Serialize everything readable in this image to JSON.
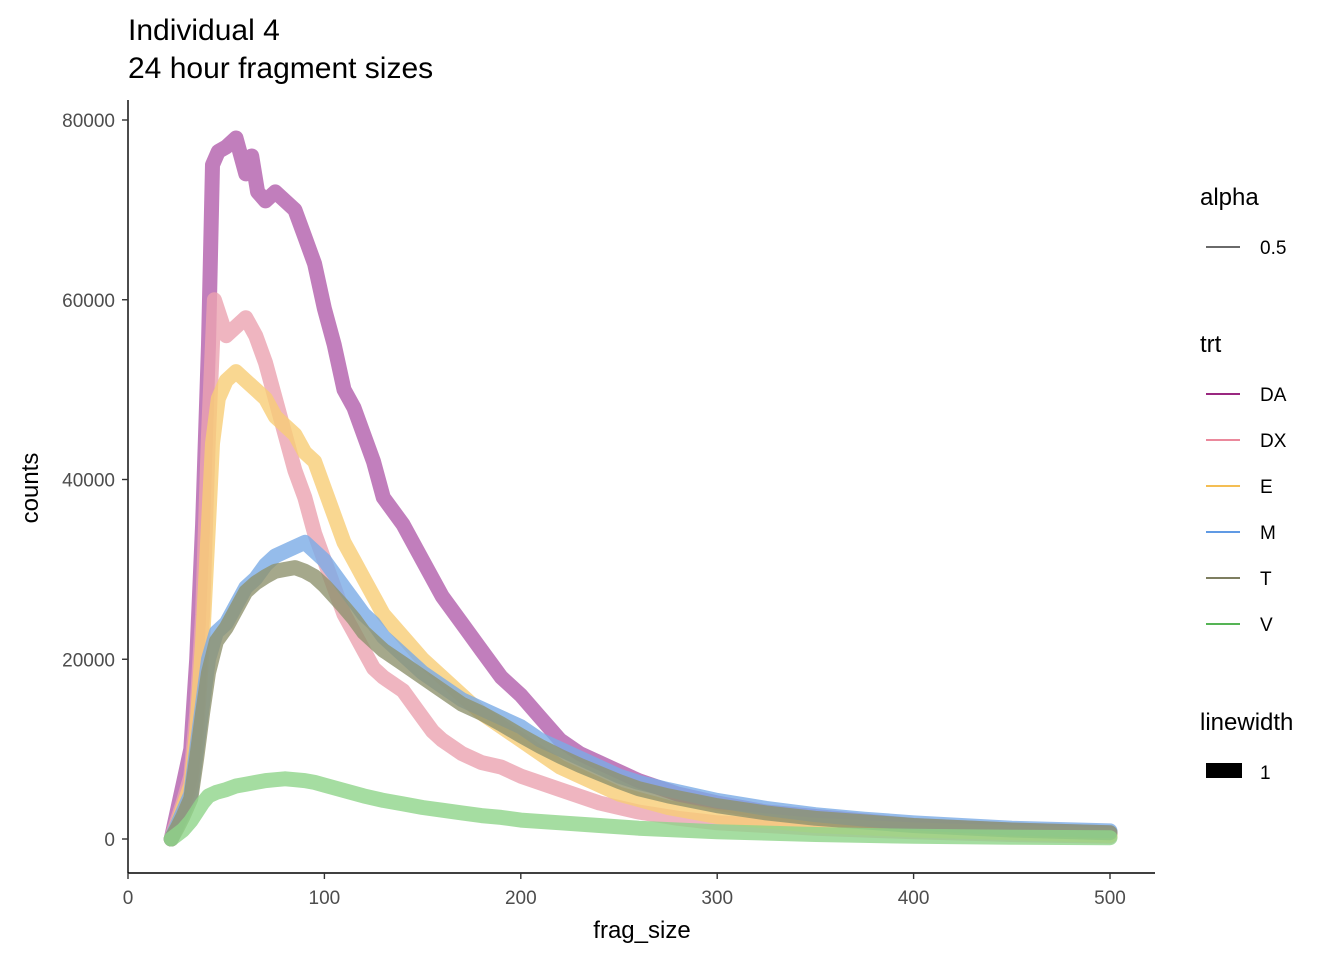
{
  "chart_data": {
    "type": "line",
    "title": "Individual 4",
    "subtitle": "24 hour fragment sizes",
    "xlabel": "frag_size",
    "ylabel": "counts",
    "xlim": [
      0,
      525
    ],
    "ylim": [
      -4000,
      82000
    ],
    "x_ticks": [
      0,
      100,
      200,
      300,
      400,
      500
    ],
    "y_ticks": [
      0,
      20000,
      40000,
      60000,
      80000
    ],
    "grid": false,
    "legend_position": "right",
    "legends": [
      {
        "title": "alpha",
        "entries": [
          {
            "label": "0.5",
            "color": "#555555"
          }
        ]
      },
      {
        "title": "trt",
        "entries": [
          {
            "label": "DA",
            "color": "#8B0A6E"
          },
          {
            "label": "DX",
            "color": "#E8788E"
          },
          {
            "label": "E",
            "color": "#F2B53B"
          },
          {
            "label": "M",
            "color": "#4A8BE0"
          },
          {
            "label": "T",
            "color": "#6B6B4A"
          },
          {
            "label": "V",
            "color": "#3DAA3D"
          }
        ]
      },
      {
        "title": "linewidth",
        "entries": [
          {
            "label": "1",
            "color": "#000000"
          }
        ]
      }
    ],
    "series": [
      {
        "name": "DA",
        "color": "#B15EAB",
        "points": [
          [
            22,
            0
          ],
          [
            25,
            3000
          ],
          [
            28,
            6000
          ],
          [
            32,
            10000
          ],
          [
            35,
            20000
          ],
          [
            38,
            35000
          ],
          [
            41,
            55000
          ],
          [
            43,
            75000
          ],
          [
            46,
            76500
          ],
          [
            50,
            77000
          ],
          [
            55,
            78000
          ],
          [
            60,
            74000
          ],
          [
            63,
            76000
          ],
          [
            66,
            72000
          ],
          [
            70,
            71000
          ],
          [
            75,
            72000
          ],
          [
            80,
            71000
          ],
          [
            85,
            70000
          ],
          [
            90,
            67000
          ],
          [
            95,
            64000
          ],
          [
            100,
            59000
          ],
          [
            105,
            55000
          ],
          [
            110,
            50000
          ],
          [
            115,
            48000
          ],
          [
            120,
            45000
          ],
          [
            125,
            42000
          ],
          [
            130,
            38000
          ],
          [
            140,
            35000
          ],
          [
            150,
            31000
          ],
          [
            160,
            27000
          ],
          [
            170,
            24000
          ],
          [
            180,
            21000
          ],
          [
            190,
            18000
          ],
          [
            200,
            16000
          ],
          [
            210,
            13500
          ],
          [
            220,
            11000
          ],
          [
            230,
            9500
          ],
          [
            240,
            8500
          ],
          [
            250,
            7500
          ],
          [
            260,
            6500
          ],
          [
            280,
            5000
          ],
          [
            300,
            4000
          ],
          [
            325,
            3000
          ],
          [
            350,
            2500
          ],
          [
            375,
            2000
          ],
          [
            400,
            1500
          ],
          [
            450,
            1000
          ],
          [
            500,
            700
          ]
        ]
      },
      {
        "name": "DX",
        "color": "#EBA2B0",
        "points": [
          [
            22,
            0
          ],
          [
            25,
            2000
          ],
          [
            28,
            4000
          ],
          [
            32,
            7000
          ],
          [
            35,
            14000
          ],
          [
            38,
            25000
          ],
          [
            41,
            45000
          ],
          [
            44,
            60000
          ],
          [
            47,
            58000
          ],
          [
            50,
            56000
          ],
          [
            55,
            57000
          ],
          [
            60,
            58000
          ],
          [
            65,
            56000
          ],
          [
            70,
            53000
          ],
          [
            75,
            49000
          ],
          [
            80,
            45000
          ],
          [
            85,
            41000
          ],
          [
            90,
            38000
          ],
          [
            95,
            34000
          ],
          [
            100,
            31000
          ],
          [
            105,
            28000
          ],
          [
            110,
            25000
          ],
          [
            115,
            23000
          ],
          [
            120,
            21000
          ],
          [
            125,
            19000
          ],
          [
            130,
            18000
          ],
          [
            140,
            16500
          ],
          [
            150,
            13500
          ],
          [
            155,
            12000
          ],
          [
            160,
            11000
          ],
          [
            170,
            9500
          ],
          [
            180,
            8500
          ],
          [
            190,
            8000
          ],
          [
            200,
            7000
          ],
          [
            220,
            5500
          ],
          [
            240,
            4000
          ],
          [
            260,
            3000
          ],
          [
            280,
            2300
          ],
          [
            300,
            1800
          ],
          [
            350,
            1200
          ],
          [
            400,
            800
          ],
          [
            450,
            500
          ],
          [
            500,
            300
          ]
        ]
      },
      {
        "name": "E",
        "color": "#F7CD76",
        "points": [
          [
            22,
            0
          ],
          [
            25,
            1500
          ],
          [
            28,
            3500
          ],
          [
            32,
            6000
          ],
          [
            35,
            12000
          ],
          [
            38,
            22000
          ],
          [
            41,
            35000
          ],
          [
            43,
            44000
          ],
          [
            46,
            49000
          ],
          [
            50,
            51000
          ],
          [
            55,
            52000
          ],
          [
            60,
            51000
          ],
          [
            65,
            50000
          ],
          [
            70,
            49000
          ],
          [
            75,
            47000
          ],
          [
            80,
            46000
          ],
          [
            85,
            45000
          ],
          [
            90,
            43000
          ],
          [
            95,
            42000
          ],
          [
            100,
            39000
          ],
          [
            105,
            36000
          ],
          [
            110,
            33000
          ],
          [
            115,
            31000
          ],
          [
            120,
            29000
          ],
          [
            125,
            27000
          ],
          [
            130,
            25000
          ],
          [
            140,
            22500
          ],
          [
            150,
            20000
          ],
          [
            160,
            18000
          ],
          [
            170,
            16000
          ],
          [
            180,
            14000
          ],
          [
            190,
            12500
          ],
          [
            200,
            11000
          ],
          [
            210,
            9500
          ],
          [
            220,
            8000
          ],
          [
            230,
            7000
          ],
          [
            250,
            5000
          ],
          [
            275,
            3500
          ],
          [
            300,
            2500
          ],
          [
            350,
            1500
          ],
          [
            400,
            1000
          ],
          [
            450,
            700
          ],
          [
            500,
            400
          ]
        ]
      },
      {
        "name": "M",
        "color": "#7AABE6",
        "points": [
          [
            22,
            0
          ],
          [
            25,
            1500
          ],
          [
            28,
            3000
          ],
          [
            32,
            5000
          ],
          [
            35,
            10000
          ],
          [
            38,
            15000
          ],
          [
            41,
            20000
          ],
          [
            45,
            23000
          ],
          [
            50,
            24000
          ],
          [
            55,
            26000
          ],
          [
            60,
            28000
          ],
          [
            65,
            29000
          ],
          [
            70,
            30500
          ],
          [
            75,
            31500
          ],
          [
            80,
            32000
          ],
          [
            85,
            32500
          ],
          [
            90,
            33000
          ],
          [
            95,
            32000
          ],
          [
            100,
            31000
          ],
          [
            105,
            29500
          ],
          [
            110,
            28000
          ],
          [
            115,
            26500
          ],
          [
            120,
            25000
          ],
          [
            125,
            24000
          ],
          [
            130,
            22500
          ],
          [
            140,
            20500
          ],
          [
            150,
            18500
          ],
          [
            160,
            17000
          ],
          [
            170,
            15500
          ],
          [
            180,
            14500
          ],
          [
            190,
            13500
          ],
          [
            200,
            12500
          ],
          [
            210,
            11000
          ],
          [
            220,
            10000
          ],
          [
            230,
            9000
          ],
          [
            240,
            8000
          ],
          [
            250,
            7000
          ],
          [
            260,
            6300
          ],
          [
            275,
            5500
          ],
          [
            300,
            4300
          ],
          [
            325,
            3400
          ],
          [
            350,
            2700
          ],
          [
            375,
            2200
          ],
          [
            400,
            1800
          ],
          [
            450,
            1200
          ],
          [
            500,
            900
          ]
        ]
      },
      {
        "name": "T",
        "color": "#8F926E",
        "points": [
          [
            22,
            0
          ],
          [
            25,
            1200
          ],
          [
            28,
            2500
          ],
          [
            32,
            4500
          ],
          [
            35,
            9000
          ],
          [
            38,
            14000
          ],
          [
            41,
            18500
          ],
          [
            45,
            22000
          ],
          [
            50,
            23500
          ],
          [
            55,
            25500
          ],
          [
            60,
            27500
          ],
          [
            65,
            28500
          ],
          [
            70,
            29200
          ],
          [
            75,
            29800
          ],
          [
            80,
            30000
          ],
          [
            85,
            30200
          ],
          [
            90,
            29800
          ],
          [
            95,
            29200
          ],
          [
            100,
            28200
          ],
          [
            105,
            27000
          ],
          [
            110,
            25800
          ],
          [
            115,
            24500
          ],
          [
            120,
            23000
          ],
          [
            125,
            22000
          ],
          [
            130,
            21000
          ],
          [
            140,
            19500
          ],
          [
            150,
            18000
          ],
          [
            160,
            16500
          ],
          [
            170,
            15000
          ],
          [
            180,
            14000
          ],
          [
            190,
            12800
          ],
          [
            200,
            11500
          ],
          [
            210,
            10300
          ],
          [
            220,
            9200
          ],
          [
            230,
            8200
          ],
          [
            240,
            7300
          ],
          [
            250,
            6400
          ],
          [
            260,
            5600
          ],
          [
            275,
            4800
          ],
          [
            300,
            3700
          ],
          [
            325,
            2900
          ],
          [
            350,
            2300
          ],
          [
            375,
            1900
          ],
          [
            400,
            1500
          ],
          [
            450,
            1000
          ],
          [
            500,
            700
          ]
        ]
      },
      {
        "name": "V",
        "color": "#8ED58A",
        "points": [
          [
            22,
            0
          ],
          [
            25,
            500
          ],
          [
            28,
            1000
          ],
          [
            32,
            2000
          ],
          [
            35,
            3000
          ],
          [
            38,
            4000
          ],
          [
            41,
            4800
          ],
          [
            45,
            5200
          ],
          [
            50,
            5500
          ],
          [
            55,
            5900
          ],
          [
            60,
            6100
          ],
          [
            65,
            6300
          ],
          [
            70,
            6500
          ],
          [
            75,
            6600
          ],
          [
            80,
            6700
          ],
          [
            85,
            6600
          ],
          [
            90,
            6500
          ],
          [
            95,
            6300
          ],
          [
            100,
            6000
          ],
          [
            110,
            5400
          ],
          [
            120,
            4800
          ],
          [
            130,
            4300
          ],
          [
            140,
            3900
          ],
          [
            150,
            3500
          ],
          [
            160,
            3200
          ],
          [
            170,
            2900
          ],
          [
            180,
            2600
          ],
          [
            190,
            2400
          ],
          [
            200,
            2100
          ],
          [
            220,
            1800
          ],
          [
            240,
            1500
          ],
          [
            260,
            1200
          ],
          [
            280,
            1000
          ],
          [
            300,
            800
          ],
          [
            350,
            500
          ],
          [
            400,
            300
          ],
          [
            450,
            200
          ],
          [
            500,
            150
          ]
        ]
      }
    ]
  }
}
